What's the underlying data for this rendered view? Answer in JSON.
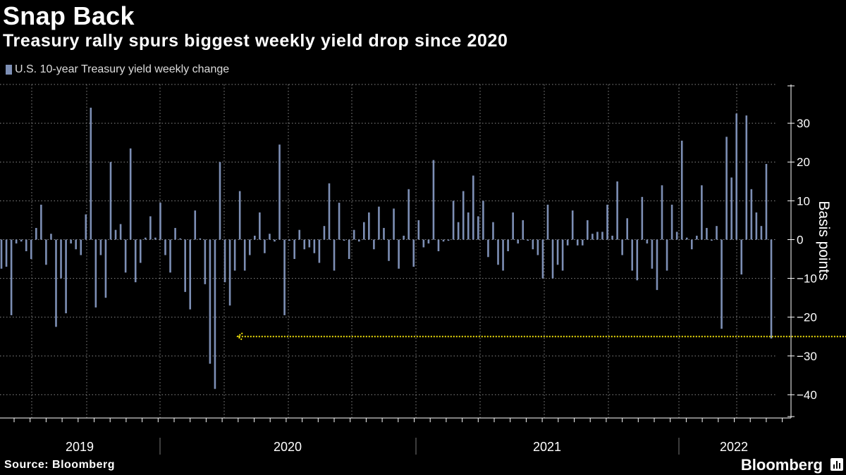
{
  "header": {
    "title": "Snap Back",
    "subtitle": "Treasury rally spurs biggest weekly yield drop since 2020"
  },
  "legend": {
    "label": "U.S. 10-year Treasury yield weekly change",
    "color": "#7d8fb5"
  },
  "footer": {
    "source": "Source: Bloomberg",
    "brand": "Bloomberg"
  },
  "colors": {
    "bar": "#7d8fb5",
    "annotation": "#f5e50a",
    "grid": "#8a8a8a",
    "background": "#000000"
  },
  "chart_data": {
    "type": "bar",
    "title": "Treasury rally spurs biggest weekly yield drop since 2020",
    "series": [
      {
        "name": "U.S. 10-year Treasury yield weekly change"
      }
    ],
    "ylabel": "Basis points",
    "ylim": [
      -46,
      40
    ],
    "yticks": [
      30,
      20,
      10,
      0,
      -10,
      -20,
      -30,
      -40
    ],
    "xlabels": [
      "2019",
      "2020",
      "2021",
      "2022"
    ],
    "annotation": {
      "type": "arrow",
      "from_week": 173,
      "to_week": 45,
      "value": -25
    },
    "values": [
      -7.5,
      -7,
      -19.5,
      -1,
      -0.5,
      -3,
      -5,
      3,
      9,
      -6.5,
      1.5,
      -22.5,
      -10,
      -19,
      -1,
      -2.5,
      -4,
      6.5,
      34,
      -17.5,
      -4,
      -15,
      20,
      2.5,
      4,
      -8.5,
      23.5,
      -11,
      -6,
      0.5,
      6,
      0.5,
      9.5,
      -4,
      -8.5,
      3,
      0.3,
      -13.5,
      -18,
      7.5,
      0.3,
      -11.5,
      -32,
      -38.5,
      20,
      -11,
      -17,
      -8,
      12.5,
      -8,
      -4,
      1,
      7,
      -3.5,
      1.5,
      -0.5,
      24.5,
      -19.5,
      -0.3,
      -5,
      2.5,
      -2.5,
      -2,
      -3.5,
      -6,
      3.5,
      14.5,
      -8,
      9.5,
      -0.3,
      -5,
      2.5,
      -0.5,
      4.5,
      7,
      -2.5,
      8.5,
      3,
      -5.5,
      8,
      -7.5,
      1,
      13,
      -7,
      5,
      -2,
      -1,
      20.5,
      -3,
      -0.5,
      -0.3,
      10,
      4.5,
      12.5,
      7,
      16.5,
      6,
      10,
      -4.5,
      4.5,
      -6.5,
      -8,
      -3,
      7,
      -1,
      5,
      -0.3,
      -2.5,
      -4,
      -10,
      9,
      -10,
      -6.5,
      -8,
      -1.5,
      7.5,
      -1.5,
      -1.5,
      5,
      1.5,
      2,
      2,
      9,
      1,
      15,
      -4,
      5.5,
      -8,
      -10.5,
      11,
      -1,
      -7.5,
      -13,
      14,
      -8,
      9,
      2,
      25.5,
      0.5,
      -2.5,
      1,
      14,
      3,
      -0.3,
      3.5,
      -23,
      26.5,
      16,
      32.5,
      -9,
      32,
      13,
      7,
      3.5,
      19.5,
      -25.5
    ]
  }
}
